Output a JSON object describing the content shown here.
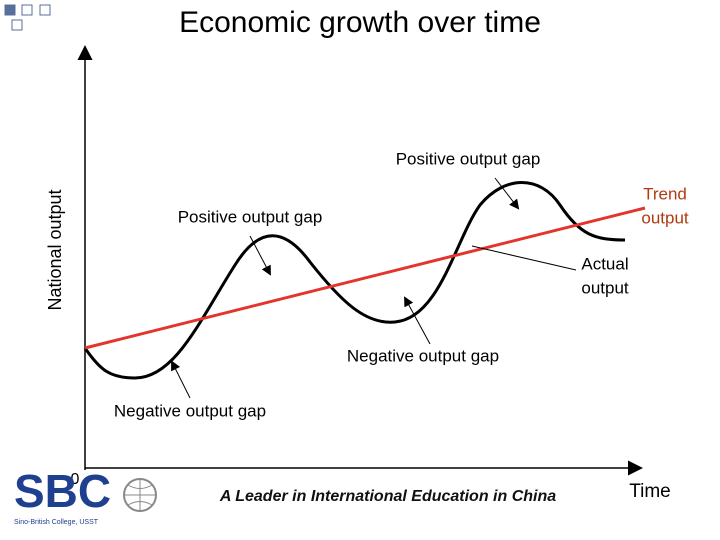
{
  "header": {
    "title": "Economic growth over time"
  },
  "axes": {
    "y_label": "National output",
    "x_label": "Time",
    "origin": "0"
  },
  "annotations": {
    "positive_gap_right": "Positive output gap",
    "positive_gap_left": "Positive output gap",
    "trend_output": [
      "Trend",
      "output"
    ],
    "actual_output": [
      "Actual",
      "output"
    ],
    "negative_gap_right": "Negative output gap",
    "negative_gap_left": "Negative output gap"
  },
  "footer": {
    "logo": "SBC",
    "logo_subtitle": "Sino-British College, USST",
    "slogan": "A Leader in International Education in China"
  }
}
